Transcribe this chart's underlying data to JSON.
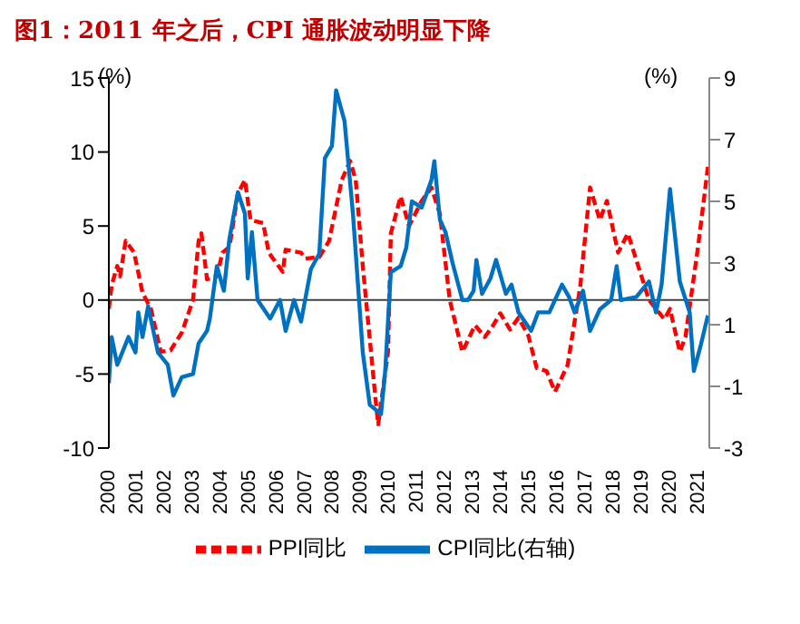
{
  "chart_data": {
    "type": "line",
    "title": "图1：2011 年之后，CPI 通胀波动明显下降",
    "ylabel": "(%)",
    "y2label": "(%)",
    "xlim": [
      2000,
      2021.4
    ],
    "xticks": [
      2000,
      2001,
      2002,
      2003,
      2004,
      2005,
      2006,
      2007,
      2008,
      2009,
      2010,
      2011,
      2012,
      2013,
      2014,
      2015,
      2016,
      2017,
      2018,
      2019,
      2020,
      2021
    ],
    "ylim": [
      -10,
      15
    ],
    "yticks": [
      -10,
      -5,
      0,
      5,
      10,
      15
    ],
    "y2lim": [
      -3,
      9
    ],
    "y2ticks": [
      -3,
      -1,
      1,
      3,
      5,
      7,
      9
    ],
    "ref_lines": [
      {
        "axis": "y",
        "value": 0,
        "color": "#404040"
      }
    ],
    "legend": "bottom",
    "marker": "none",
    "series": [
      {
        "name": "PPI同比",
        "color": "#ff0000",
        "line_style": "dashed",
        "x": [
          2000.0,
          2000.1,
          2000.3,
          2000.4,
          2000.6,
          2000.9,
          2001.2,
          2001.5,
          2001.85,
          2002.2,
          2002.6,
          2003.0,
          2003.2,
          2003.3,
          2003.5,
          2003.85,
          2004.05,
          2004.3,
          2004.6,
          2004.85,
          2005.05,
          2005.5,
          2005.7,
          2006.2,
          2006.3,
          2006.85,
          2007.0,
          2007.5,
          2007.85,
          2008.3,
          2008.6,
          2008.8,
          2009.05,
          2009.5,
          2009.6,
          2009.95,
          2010.05,
          2010.4,
          2010.7,
          2011.15,
          2011.5,
          2011.8,
          2012.15,
          2012.6,
          2013.05,
          2013.4,
          2013.7,
          2013.95,
          2014.3,
          2014.6,
          2014.95,
          2015.25,
          2015.6,
          2015.9,
          2016.35,
          2016.8,
          2017.15,
          2017.5,
          2017.75,
          2018.15,
          2018.5,
          2018.8,
          2019.25,
          2019.8,
          2020.0,
          2020.35,
          2020.55,
          2021.0,
          2021.35
        ],
        "values": [
          -0.6,
          1.0,
          2.3,
          1.6,
          4.0,
          3.2,
          0.5,
          -0.6,
          -3.5,
          -3.4,
          -2.2,
          0,
          4.0,
          4.5,
          1.4,
          1.6,
          3.2,
          3.6,
          7.2,
          8.1,
          5.4,
          5.2,
          3.2,
          1.9,
          3.4,
          3.2,
          2.8,
          2.9,
          4.0,
          8.1,
          9.4,
          8.1,
          2.3,
          -6.6,
          -8.4,
          -3.5,
          4.5,
          7.0,
          5.0,
          6.7,
          7.6,
          5.8,
          0,
          -3.5,
          -1.7,
          -2.5,
          -1.7,
          -0.9,
          -2.0,
          -1.2,
          -2.4,
          -4.6,
          -4.8,
          -6.2,
          -4.4,
          0.9,
          7.6,
          5.4,
          6.7,
          3.2,
          4.5,
          2.7,
          0,
          -1.3,
          -0.6,
          -3.5,
          -2.5,
          3.6,
          9.0
        ]
      },
      {
        "name": "CPI同比(右轴)",
        "color": "#0070c0",
        "line_style": "solid",
        "axis": "y2",
        "x": [
          2000.0,
          2000.1,
          2000.3,
          2000.7,
          2000.95,
          2001.05,
          2001.2,
          2001.4,
          2001.75,
          2002.1,
          2002.3,
          2002.6,
          2003.0,
          2003.2,
          2003.5,
          2003.6,
          2003.85,
          2004.1,
          2004.3,
          2004.6,
          2004.85,
          2004.95,
          2005.1,
          2005.3,
          2005.75,
          2006.1,
          2006.3,
          2006.6,
          2006.85,
          2007.2,
          2007.5,
          2007.7,
          2007.95,
          2008.1,
          2008.4,
          2008.7,
          2009.05,
          2009.3,
          2009.7,
          2009.85,
          2010.05,
          2010.4,
          2010.6,
          2010.8,
          2011.15,
          2011.5,
          2011.6,
          2011.8,
          2012.0,
          2012.25,
          2012.6,
          2012.8,
          2013.0,
          2013.1,
          2013.3,
          2013.6,
          2013.8,
          2014.15,
          2014.35,
          2014.6,
          2015.05,
          2015.3,
          2015.7,
          2016.15,
          2016.4,
          2016.6,
          2016.9,
          2017.15,
          2017.5,
          2017.9,
          2018.1,
          2018.25,
          2018.8,
          2019.25,
          2019.5,
          2019.7,
          2020.0,
          2020.35,
          2020.7,
          2020.85,
          2021.1,
          2021.35
        ],
        "values": [
          -0.9,
          0.6,
          -0.3,
          0.6,
          0.1,
          1.4,
          0.6,
          1.6,
          0.1,
          -0.3,
          -1.3,
          -0.7,
          -0.6,
          0.4,
          0.8,
          1.2,
          2.9,
          2.1,
          3.8,
          5.3,
          4.6,
          2.5,
          4.0,
          1.8,
          1.2,
          1.8,
          0.8,
          1.8,
          1.1,
          2.8,
          3.3,
          6.4,
          6.8,
          8.6,
          7.6,
          4.6,
          0.1,
          -1.6,
          -1.9,
          -0.5,
          2.7,
          2.9,
          3.5,
          5.0,
          4.8,
          5.7,
          6.3,
          4.4,
          4.0,
          3.0,
          1.8,
          1.8,
          2.1,
          3.1,
          2.0,
          2.5,
          3.1,
          2.0,
          2.3,
          1.4,
          0.8,
          1.4,
          1.4,
          2.3,
          1.9,
          1.4,
          2.1,
          0.8,
          1.5,
          1.8,
          2.9,
          1.8,
          1.9,
          2.4,
          1.4,
          2.3,
          5.4,
          2.4,
          1.4,
          -0.5,
          0.35,
          1.3
        ]
      }
    ]
  }
}
